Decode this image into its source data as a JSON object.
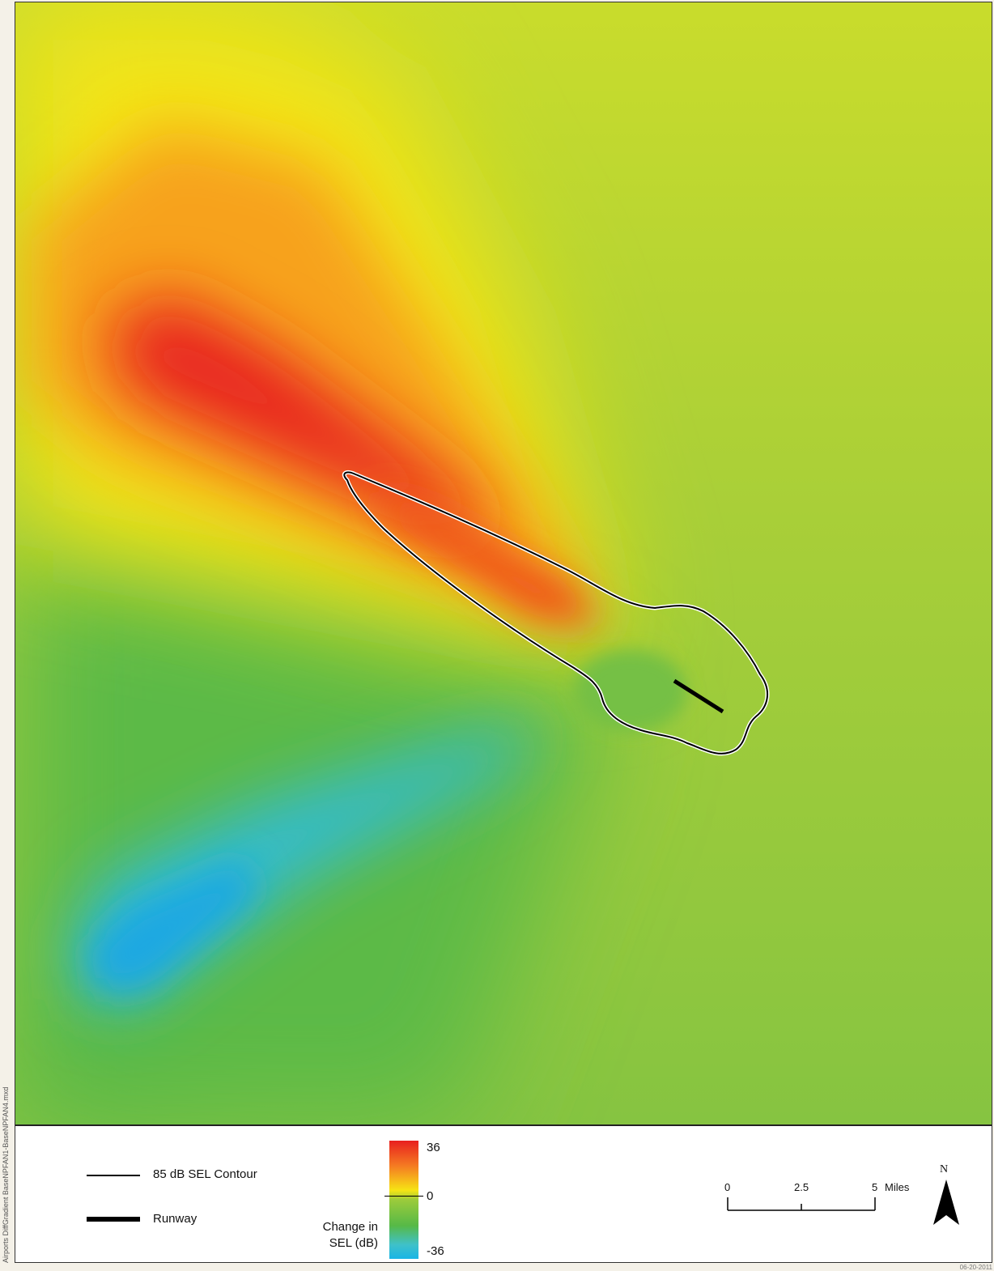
{
  "map": {
    "colors": {
      "high": "#e8201f",
      "mid_high": "#f57e22",
      "yellow": "#f6e414",
      "neutral": "#9ccb3b",
      "green": "#56b947",
      "low": "#00aee2",
      "contour": "#000000",
      "runway": "#000000"
    }
  },
  "legend": {
    "contour_label": "85 dB SEL Contour",
    "runway_label": "Runway",
    "colorbar": {
      "title_line1": "Change in",
      "title_line2": "SEL (dB)",
      "max_label": "36",
      "mid_label": "0",
      "min_label": "-36"
    },
    "scale": {
      "tick0": "0",
      "tick1": "2.5",
      "tick2": "5",
      "unit": "Miles"
    },
    "north_label": "N"
  },
  "side_note": "Airports DiffGradient BaseNPFAN1-BaseNPFAN4.mxd",
  "date_note": "06-20-2011"
}
